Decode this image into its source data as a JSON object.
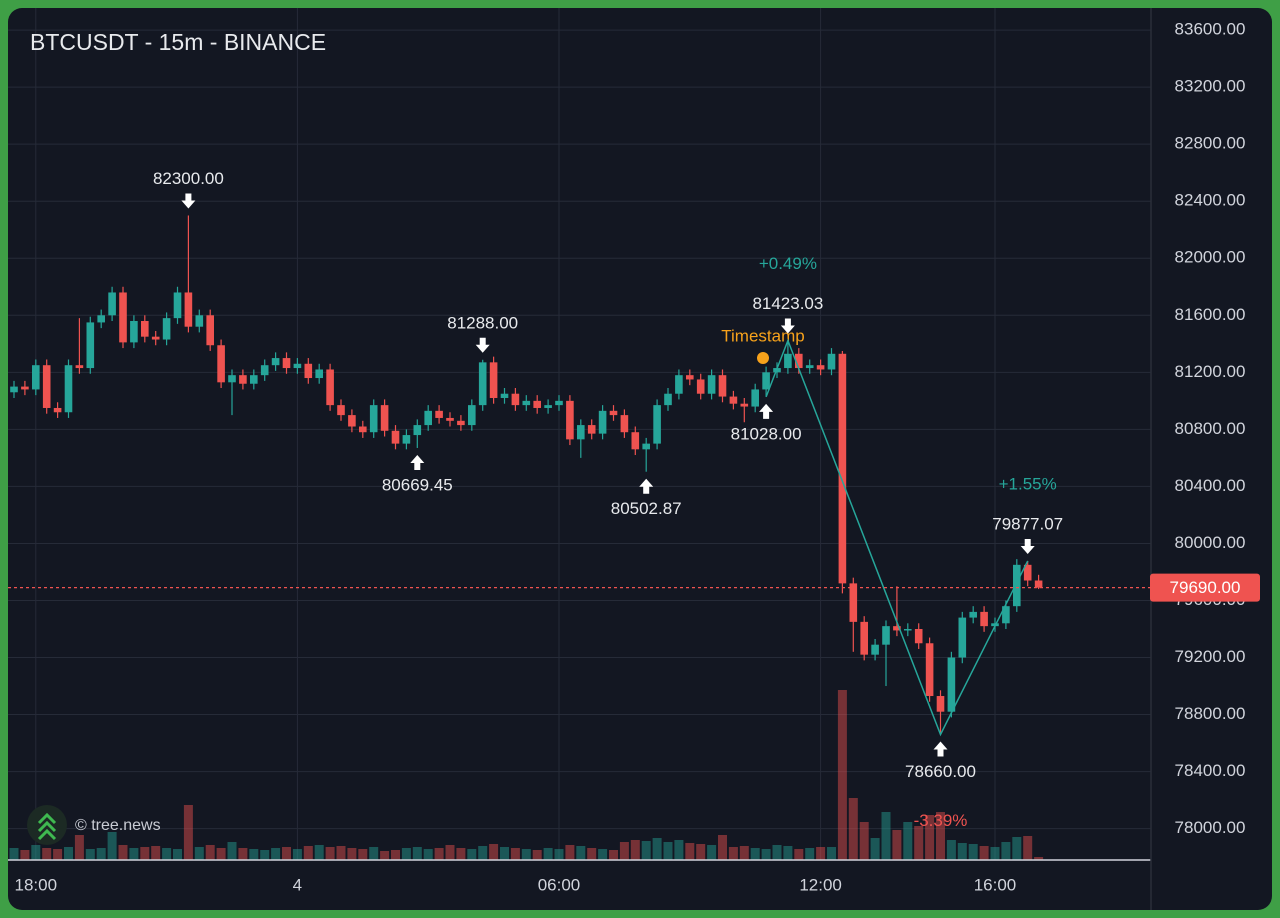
{
  "chart_data": {
    "type": "candlestick",
    "title": "BTCUSDT - 15m - BINANCE",
    "watermark": "© tree.news",
    "categories": [
      "17:30",
      "17:45",
      "18:00",
      "18:15",
      "18:30",
      "18:45",
      "19:00",
      "19:15",
      "19:30",
      "19:45",
      "20:00",
      "20:15",
      "20:30",
      "20:45",
      "21:00",
      "21:15",
      "21:30",
      "21:45",
      "22:00",
      "22:15",
      "22:30",
      "22:45",
      "23:00",
      "23:15",
      "23:30",
      "23:45",
      "00:00",
      "00:15",
      "00:30",
      "00:45",
      "01:00",
      "01:15",
      "01:30",
      "01:45",
      "02:00",
      "02:15",
      "02:30",
      "02:45",
      "03:00",
      "03:15",
      "03:30",
      "03:45",
      "04:00",
      "04:15",
      "04:30",
      "04:45",
      "05:00",
      "05:15",
      "05:30",
      "05:45",
      "06:00",
      "06:15",
      "06:30",
      "06:45",
      "07:00",
      "07:15",
      "07:30",
      "07:45",
      "08:00",
      "08:15",
      "08:30",
      "08:45",
      "09:00",
      "09:15",
      "09:30",
      "09:45",
      "10:00",
      "10:15",
      "10:30",
      "10:45",
      "11:00",
      "11:15",
      "11:30",
      "11:45",
      "12:00",
      "12:15",
      "12:30",
      "12:45",
      "13:00",
      "13:15",
      "13:30",
      "13:45",
      "14:00",
      "14:15",
      "14:30",
      "14:45",
      "15:00",
      "15:15",
      "15:30",
      "15:45",
      "16:00",
      "16:15",
      "16:30",
      "16:45",
      "17:00"
    ],
    "open": [
      81060,
      81100,
      81080,
      81250,
      80950,
      80920,
      81250,
      81230,
      81550,
      81600,
      81760,
      81410,
      81560,
      81450,
      81430,
      81580,
      81760,
      81520,
      81600,
      81390,
      81130,
      81180,
      81120,
      81180,
      81250,
      81300,
      81230,
      81260,
      81160,
      81220,
      80970,
      80900,
      80820,
      80780,
      80970,
      80790,
      80700,
      80760,
      80830,
      80930,
      80880,
      80860,
      80830,
      80970,
      81270,
      81020,
      81050,
      80970,
      81000,
      80950,
      80970,
      81000,
      80730,
      80830,
      80770,
      80930,
      80900,
      80780,
      80660,
      80700,
      80970,
      81050,
      81180,
      81150,
      81050,
      81180,
      81030,
      80980,
      80960,
      81080,
      81200,
      81230,
      81330,
      81230,
      81250,
      81220,
      81330,
      79720,
      79450,
      79220,
      79290,
      79420,
      79390,
      79400,
      79300,
      78930,
      78820,
      79200,
      79480,
      79520,
      79420,
      79440,
      79560,
      79850,
      79740
    ],
    "high": [
      81140,
      81140,
      81290,
      81290,
      80990,
      81290,
      81580,
      81590,
      81640,
      81800,
      81800,
      81600,
      81600,
      81490,
      81620,
      81800,
      82300,
      81640,
      81640,
      81430,
      81220,
      81220,
      81220,
      81290,
      81340,
      81340,
      81300,
      81300,
      81260,
      81260,
      81010,
      80940,
      80860,
      81010,
      81010,
      80830,
      80800,
      80870,
      80970,
      80970,
      80920,
      80900,
      81010,
      81288,
      81310,
      81090,
      81090,
      81040,
      81040,
      81010,
      81040,
      81040,
      80870,
      80870,
      80970,
      80970,
      80940,
      80820,
      80740,
      81010,
      81090,
      81220,
      81220,
      81190,
      81220,
      81220,
      81070,
      81020,
      81120,
      81240,
      81270,
      81423.03,
      81370,
      81290,
      81290,
      81370,
      81350,
      79760,
      79490,
      79330,
      79460,
      79700,
      79440,
      79440,
      79340,
      78970,
      79240,
      79520,
      79560,
      79560,
      79480,
      79600,
      79890,
      79877.07,
      79780
    ],
    "low": [
      81020,
      81040,
      81040,
      80910,
      80880,
      80880,
      81190,
      81190,
      81510,
      81560,
      81370,
      81370,
      81410,
      81390,
      81390,
      81540,
      81480,
      81480,
      81350,
      81090,
      80900,
      81080,
      81080,
      81140,
      81210,
      81190,
      81190,
      81120,
      81120,
      80930,
      80860,
      80780,
      80740,
      80740,
      80750,
      80660,
      80660,
      80669.45,
      80790,
      80840,
      80820,
      80790,
      80790,
      80930,
      80980,
      80980,
      80930,
      80930,
      80910,
      80910,
      80930,
      80690,
      80600,
      80730,
      80730,
      80860,
      80740,
      80620,
      80502.87,
      80660,
      80930,
      81010,
      81110,
      81010,
      81010,
      80990,
      80940,
      80850,
      80920,
      81028,
      81160,
      81190,
      81190,
      81190,
      81180,
      81180,
      79650,
      79240,
      79180,
      79180,
      79000,
      79350,
      79350,
      79260,
      78890,
      78660,
      78780,
      79160,
      79440,
      79380,
      79380,
      79400,
      79520,
      79700,
      79680
    ],
    "close": [
      81100,
      81080,
      81250,
      80950,
      80920,
      81250,
      81230,
      81550,
      81600,
      81760,
      81410,
      81560,
      81450,
      81430,
      81580,
      81760,
      81520,
      81600,
      81390,
      81130,
      81180,
      81120,
      81180,
      81250,
      81300,
      81230,
      81260,
      81160,
      81220,
      80970,
      80900,
      80820,
      80780,
      80970,
      80790,
      80700,
      80760,
      80830,
      80930,
      80880,
      80860,
      80830,
      80970,
      81270,
      81020,
      81050,
      80970,
      81000,
      80950,
      80970,
      81000,
      80730,
      80830,
      80770,
      80930,
      80900,
      80780,
      80660,
      80700,
      80970,
      81050,
      81180,
      81150,
      81050,
      81180,
      81030,
      80980,
      80960,
      81080,
      81200,
      81230,
      81330,
      81230,
      81250,
      81220,
      81330,
      79720,
      79450,
      79220,
      79290,
      79420,
      79390,
      79400,
      79300,
      78930,
      78820,
      79200,
      79480,
      79520,
      79420,
      79440,
      79560,
      79850,
      79740,
      79690
    ],
    "volume": [
      120,
      100,
      150,
      120,
      110,
      130,
      250,
      110,
      120,
      280,
      150,
      120,
      130,
      140,
      120,
      110,
      550,
      130,
      150,
      120,
      180,
      120,
      110,
      100,
      120,
      130,
      110,
      140,
      150,
      130,
      140,
      120,
      110,
      130,
      90,
      100,
      120,
      130,
      110,
      120,
      150,
      120,
      110,
      140,
      160,
      130,
      120,
      110,
      100,
      120,
      110,
      150,
      140,
      120,
      110,
      100,
      180,
      200,
      190,
      220,
      180,
      200,
      170,
      160,
      150,
      250,
      130,
      140,
      120,
      110,
      150,
      140,
      110,
      120,
      130,
      130,
      1700,
      620,
      380,
      220,
      480,
      300,
      380,
      340,
      450,
      480,
      200,
      170,
      160,
      140,
      130,
      180,
      230,
      240,
      30
    ],
    "up_color": "#26a69a",
    "down_color": "#ef5350",
    "ylim": [
      77780,
      83755
    ],
    "yticks": [
      {
        "value": 78000,
        "label": "78000.00"
      },
      {
        "value": 78400,
        "label": "78400.00"
      },
      {
        "value": 78800,
        "label": "78800.00"
      },
      {
        "value": 79200,
        "label": "79200.00"
      },
      {
        "value": 79600,
        "label": "79600.00"
      },
      {
        "value": 80000,
        "label": "80000.00"
      },
      {
        "value": 80400,
        "label": "80400.00"
      },
      {
        "value": 80800,
        "label": "80800.00"
      },
      {
        "value": 81200,
        "label": "81200.00"
      },
      {
        "value": 81600,
        "label": "81600.00"
      },
      {
        "value": 82000,
        "label": "82000.00"
      },
      {
        "value": 82400,
        "label": "82400.00"
      },
      {
        "value": 82800,
        "label": "82800.00"
      },
      {
        "value": 83200,
        "label": "83200.00"
      },
      {
        "value": 83600,
        "label": "83600.00"
      }
    ],
    "xticks": [
      {
        "value": "18:00",
        "label": "18:00"
      },
      {
        "value": "00:00",
        "label": "4"
      },
      {
        "value": "06:00",
        "label": "06:00"
      },
      {
        "value": "12:00",
        "label": "12:00"
      },
      {
        "value": "16:00",
        "label": "16:00"
      }
    ],
    "grid": true,
    "annotations": [
      {
        "x": "21:30",
        "value": 82300,
        "label": "82300.00",
        "side": "high"
      },
      {
        "x": "02:45",
        "value": 80669.45,
        "label": "80669.45",
        "side": "low"
      },
      {
        "x": "04:15",
        "value": 81288,
        "label": "81288.00",
        "side": "high"
      },
      {
        "x": "08:00",
        "value": 80502.87,
        "label": "80502.87",
        "side": "low"
      },
      {
        "x": "10:45",
        "value": 81028,
        "label": "81028.00",
        "side": "low"
      },
      {
        "x": "11:15",
        "value": 81423.03,
        "label": "81423.03",
        "side": "high"
      },
      {
        "x": "14:45",
        "value": 78660,
        "label": "78660.00",
        "side": "low"
      },
      {
        "x": "16:45",
        "value": 79877.07,
        "label": "79877.07",
        "side": "high"
      }
    ],
    "zigzag": {
      "x": [
        "10:45",
        "11:15",
        "14:45",
        "16:45"
      ],
      "values": [
        81028,
        81423.03,
        78660,
        79877.07
      ],
      "color": "#26a69a",
      "changes": [
        {
          "value": 0.49,
          "label": "+0.49%"
        },
        {
          "value": -3.39,
          "label": "-3.39%"
        },
        {
          "value": 1.55,
          "label": "+1.55%"
        }
      ]
    },
    "marker_label": "Timestamp",
    "marker_color": "#f7a21b",
    "current_price": {
      "value": 79690,
      "label": "79690.00"
    }
  }
}
